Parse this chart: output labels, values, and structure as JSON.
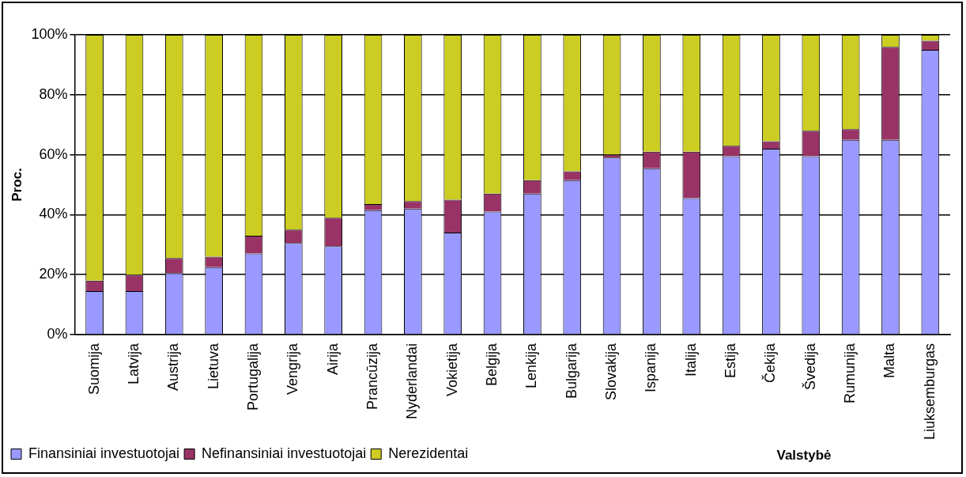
{
  "chart_data": {
    "type": "bar",
    "stacked": true,
    "xlabel": "Valstybė",
    "ylabel": "Proc.",
    "categories": [
      "Suomija",
      "Latvija",
      "Austrija",
      "Lietuva",
      "Portugalija",
      "Vengrija",
      "Airija",
      "Prancūzija",
      "Nyderlandai",
      "Vokietija",
      "Belgija",
      "Lenkija",
      "Bulgarija",
      "Slovakija",
      "Ispanija",
      "Italija",
      "Estija",
      "Čekija",
      "Švedija",
      "Rumunija",
      "Malta",
      "Liuksemburgas"
    ],
    "series": [
      {
        "name": "Finansiniai investuotojai",
        "color": "#9999ff",
        "values": [
          14.5,
          14.5,
          20.5,
          22.5,
          27,
          30.5,
          29.5,
          41.5,
          42,
          34,
          41,
          47,
          51.5,
          59,
          55.5,
          45.5,
          59.5,
          62,
          59.5,
          65,
          65,
          95
        ]
      },
      {
        "name": "Nefinansiniai investuotojai",
        "color": "#993366",
        "values": [
          3.5,
          5.5,
          5,
          3.5,
          6,
          4.5,
          9.5,
          2,
          2.5,
          11,
          6,
          4.5,
          3,
          1,
          5.5,
          15.5,
          3.5,
          2.5,
          8.5,
          3.5,
          31,
          3
        ]
      },
      {
        "name": "Nerezidentai",
        "color": "#cccc22",
        "values": [
          82,
          80,
          74.5,
          74,
          67,
          65,
          61,
          56.5,
          55.5,
          55,
          53,
          48.5,
          45.5,
          40,
          39,
          39,
          37,
          35.5,
          32,
          31.5,
          4,
          2
        ]
      }
    ],
    "ylim": [
      0,
      100
    ],
    "yticks": [
      {
        "value": 0,
        "label": "0%"
      },
      {
        "value": 20,
        "label": "20%"
      },
      {
        "value": 40,
        "label": "40%"
      },
      {
        "value": 60,
        "label": "60%"
      },
      {
        "value": 80,
        "label": "80%"
      },
      {
        "value": 100,
        "label": "100%"
      }
    ],
    "grid": "y",
    "legend": "bottom left"
  }
}
